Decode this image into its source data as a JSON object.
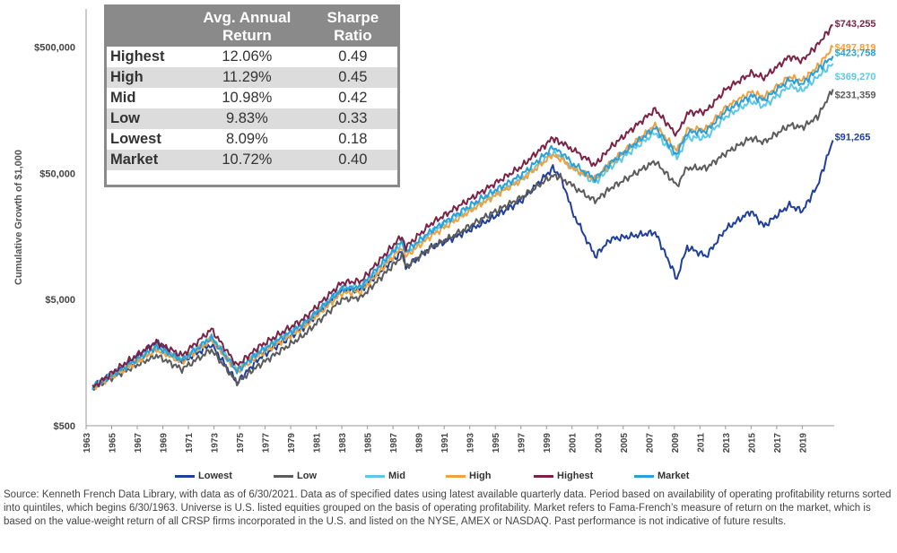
{
  "chart_data": {
    "type": "line",
    "title": "",
    "ylabel": "Cumulative Growth of $1,000",
    "yscale": "log",
    "ylim": [
      500,
      1000000
    ],
    "y_ticks": [
      500,
      5000,
      50000,
      500000
    ],
    "y_tick_labels": [
      "$500",
      "$5,000",
      "$50,000",
      "$500,000"
    ],
    "x_tick_labels": [
      "1963",
      "1965",
      "1967",
      "1969",
      "1971",
      "1973",
      "1975",
      "1977",
      "1979",
      "1981",
      "1983",
      "1985",
      "1987",
      "1989",
      "1991",
      "1993",
      "1995",
      "1997",
      "1999",
      "2001",
      "2003",
      "2005",
      "2007",
      "2009",
      "2011",
      "2013",
      "2015",
      "2017",
      "2019"
    ],
    "xlim": [
      1963,
      2021.5
    ],
    "series": [
      {
        "name": "Lowest",
        "color": "#1f3f9a",
        "end_label": "$91,265",
        "x": [
          1963.5,
          1966,
          1968.5,
          1970.5,
          1972.8,
          1974.8,
          1976.5,
          1980,
          1983,
          1984.5,
          1987.7,
          1988,
          1990,
          1991.5,
          1994,
          1997,
          1999.5,
          2000.2,
          2001,
          2002.8,
          2004,
          2007.5,
          2009.2,
          2010,
          2011.5,
          2013,
          2015,
          2016,
          2018,
          2019,
          2020.2,
          2021.4
        ],
        "values": [
          1000,
          1500,
          2300,
          1600,
          2200,
          1100,
          1700,
          3000,
          6000,
          6000,
          12000,
          9000,
          13000,
          15000,
          20000,
          30000,
          55000,
          45000,
          25000,
          11000,
          15000,
          17000,
          7300,
          13000,
          11000,
          18000,
          25000,
          19000,
          28000,
          25000,
          40000,
          91265
        ]
      },
      {
        "name": "Low",
        "color": "#5b5b5b",
        "end_label": "$231,359",
        "x": [
          1963.5,
          1966,
          1968.5,
          1970.5,
          1972.8,
          1974.8,
          1976.5,
          1980,
          1983,
          1984.5,
          1987.7,
          1988,
          1990,
          1991.5,
          1994,
          1997,
          1999.5,
          2000.2,
          2001,
          2002.8,
          2004,
          2007.5,
          2009.2,
          2010,
          2011.5,
          2013,
          2015,
          2016,
          2018,
          2019,
          2020.2,
          2021.4
        ],
        "values": [
          1000,
          1350,
          1800,
          1400,
          2000,
          1100,
          1500,
          2600,
          5000,
          5200,
          11000,
          9000,
          13000,
          15500,
          22000,
          32000,
          48000,
          46000,
          40000,
          30000,
          38000,
          62000,
          40000,
          55000,
          55000,
          72000,
          95000,
          88000,
          120000,
          115000,
          140000,
          231359
        ]
      },
      {
        "name": "Mid",
        "color": "#5cc8e6",
        "end_label": "$369,270",
        "x": [
          1963.5,
          1966,
          1968.5,
          1970.5,
          1972.8,
          1974.8,
          1976.5,
          1980,
          1983,
          1984.5,
          1987.7,
          1988,
          1990,
          1991.5,
          1994,
          1997,
          1999.5,
          2000.2,
          2001,
          2002.8,
          2004,
          2007.5,
          2009.2,
          2010,
          2011.5,
          2013,
          2015,
          2016,
          2018,
          2019,
          2020.2,
          2021.4
        ],
        "values": [
          1000,
          1450,
          2100,
          1700,
          2500,
          1400,
          1950,
          3200,
          6200,
          6400,
          14000,
          11500,
          17000,
          21000,
          30000,
          45000,
          73000,
          66000,
          56000,
          42000,
          56000,
          105000,
          66000,
          95000,
          96000,
          140000,
          185000,
          170000,
          245000,
          225000,
          290000,
          369270
        ]
      },
      {
        "name": "High",
        "color": "#f2a03d",
        "end_label": "$497,819",
        "x": [
          1963.5,
          1966,
          1968.5,
          1970.5,
          1972.8,
          1974.8,
          1976.5,
          1980,
          1983,
          1984.5,
          1987.7,
          1988,
          1990,
          1991.5,
          1994,
          1997,
          1999.5,
          2000.2,
          2001,
          2002.8,
          2004,
          2007.5,
          2009.2,
          2010,
          2011.5,
          2013,
          2015,
          2016,
          2018,
          2019,
          2020.2,
          2021.4
        ],
        "values": [
          1000,
          1400,
          2000,
          1600,
          2400,
          1350,
          1800,
          3000,
          5600,
          5800,
          13000,
          11000,
          16000,
          20000,
          29000,
          44000,
          70000,
          64000,
          55000,
          45000,
          60000,
          120000,
          75000,
          110000,
          112000,
          165000,
          220000,
          200000,
          290000,
          270000,
          350000,
          497819
        ]
      },
      {
        "name": "Highest",
        "color": "#7b2346",
        "end_label": "$743,255",
        "x": [
          1963.5,
          1966,
          1968.5,
          1970.5,
          1972.8,
          1974.8,
          1976.5,
          1980,
          1983,
          1984.5,
          1987.7,
          1988,
          1990,
          1991.5,
          1994,
          1997,
          1999.5,
          2000.2,
          2001,
          2002.8,
          2004,
          2007.5,
          2009.2,
          2010,
          2011.5,
          2013,
          2015,
          2016,
          2018,
          2019,
          2020.2,
          2021.4
        ],
        "values": [
          1000,
          1550,
          2300,
          1800,
          2900,
          1500,
          2100,
          3500,
          6800,
          7000,
          16000,
          13000,
          20000,
          25000,
          36000,
          56000,
          95000,
          86000,
          78000,
          58000,
          80000,
          160000,
          100000,
          150000,
          155000,
          230000,
          310000,
          285000,
          420000,
          390000,
          520000,
          743255
        ]
      },
      {
        "name": "Market",
        "color": "#2b9fd8",
        "end_label": "$423,758",
        "x": [
          1963.5,
          1966,
          1968.5,
          1970.5,
          1972.8,
          1974.8,
          1976.5,
          1980,
          1983,
          1984.5,
          1987.7,
          1988,
          1990,
          1991.5,
          1994,
          1997,
          1999.5,
          2000.2,
          2001,
          2002.8,
          2004,
          2007.5,
          2009.2,
          2010,
          2011.5,
          2013,
          2015,
          2016,
          2018,
          2019,
          2020.2,
          2021.4
        ],
        "values": [
          1000,
          1450,
          2100,
          1650,
          2500,
          1350,
          1900,
          3200,
          6000,
          6300,
          14500,
          12000,
          17500,
          22000,
          32000,
          48000,
          80000,
          72000,
          60000,
          45000,
          60000,
          115000,
          70000,
          105000,
          108000,
          155000,
          205000,
          190000,
          275000,
          255000,
          330000,
          423758
        ]
      }
    ]
  },
  "table": {
    "headers": [
      "Avg. Annual Return",
      "Sharpe Ratio"
    ],
    "rows": [
      {
        "name": "Highest",
        "ret": "12.06%",
        "sharpe": "0.49"
      },
      {
        "name": "High",
        "ret": "11.29%",
        "sharpe": "0.45"
      },
      {
        "name": "Mid",
        "ret": "10.98%",
        "sharpe": "0.42"
      },
      {
        "name": "Low",
        "ret": "9.83%",
        "sharpe": "0.33"
      },
      {
        "name": "Lowest",
        "ret": "8.09%",
        "sharpe": "0.18"
      },
      {
        "name": "Market",
        "ret": "10.72%",
        "sharpe": "0.40"
      }
    ]
  },
  "legend": [
    "Lowest",
    "Low",
    "Mid",
    "High",
    "Highest",
    "Market"
  ],
  "source": "Source: Kenneth French Data Library, with data as of 6/30/2021. Data as of specified dates using latest available quarterly data. Period based on availability of operating profitability returns sorted into quintiles, which begins 6/30/1963. Universe is U.S. listed equities grouped on the basis of operating profitability. Market refers to Fama-French’s measure of return on the market, which is based on the value-weight return of all CRSP firms incorporated in the U.S. and listed on the NYSE, AMEX or NASDAQ. Past performance is not indicative of future results."
}
